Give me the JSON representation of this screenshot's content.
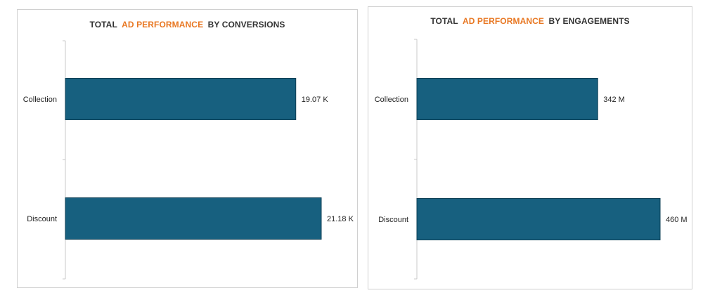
{
  "colors": {
    "bar": "#17607f",
    "bar_border": "#0e3f55",
    "title_dark": "#333333",
    "title_accent": "#e87722",
    "axis": "#c8c8c8"
  },
  "chart_data": [
    {
      "type": "bar",
      "orientation": "horizontal",
      "title_parts": {
        "prefix": "TOTAL",
        "accent": "AD PERFORMANCE",
        "suffix": "BY CONVERSIONS"
      },
      "categories": [
        "Collection",
        "Discount"
      ],
      "values": [
        19070,
        21180
      ],
      "data_labels": [
        "19.07 K",
        "21.18 K"
      ],
      "xlim": [
        0,
        21180
      ],
      "grid": false,
      "legend": "none"
    },
    {
      "type": "bar",
      "orientation": "horizontal",
      "title_parts": {
        "prefix": "TOTAL",
        "accent": "AD PERFORMANCE",
        "suffix": "BY ENGAGEMENTS"
      },
      "categories": [
        "Collection",
        "Discount"
      ],
      "values": [
        342000000,
        460000000
      ],
      "data_labels": [
        "342 M",
        "460 M"
      ],
      "xlim": [
        0,
        460000000
      ],
      "grid": false,
      "legend": "none"
    }
  ]
}
